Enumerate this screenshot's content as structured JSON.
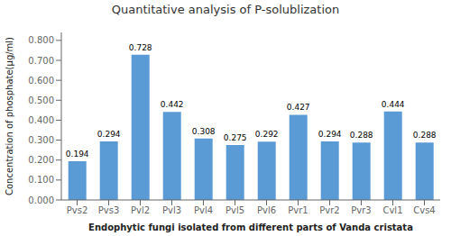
{
  "chart_data": {
    "type": "bar",
    "title": "Quantitative analysis of P-solublization",
    "categories": [
      "Pvs2",
      "Pvs3",
      "Pvl2",
      "Pvl3",
      "Pvl4",
      "Pvl5",
      "Pvl6",
      "Pvr1",
      "Pvr2",
      "Pvr3",
      "Cvl1",
      "Cvs4"
    ],
    "values": [
      0.194,
      0.294,
      0.728,
      0.442,
      0.308,
      0.275,
      0.292,
      0.427,
      0.294,
      0.288,
      0.444,
      0.288
    ],
    "color": "#5B9BD5",
    "ylabel": "Concentration of phosphate(µg/ml)",
    "xlabel": "Endophytic fungi isolated from different parts of Vanda cristata",
    "ylim": [
      0.0,
      0.84
    ],
    "yticks": [
      {
        "value": 0.0,
        "label": "0.000"
      },
      {
        "value": 0.1,
        "label": "0.100"
      },
      {
        "value": 0.2,
        "label": "0.200"
      },
      {
        "value": 0.3,
        "label": "0.300"
      },
      {
        "value": 0.4,
        "label": "0.400"
      },
      {
        "value": 0.5,
        "label": "0.500"
      },
      {
        "value": 0.6,
        "label": "0.600"
      },
      {
        "value": 0.7,
        "label": "0.700"
      },
      {
        "value": 0.8,
        "label": "0.800"
      }
    ],
    "data_labels": true,
    "grid": false
  }
}
